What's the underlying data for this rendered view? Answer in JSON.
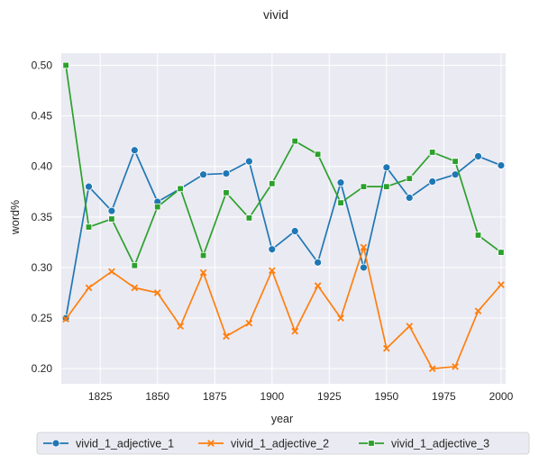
{
  "chart_data": {
    "type": "line",
    "title": "vivid",
    "xlabel": "year",
    "ylabel": "word%",
    "xlim": [
      1808,
      2002
    ],
    "ylim": [
      0.185,
      0.512
    ],
    "xticks": [
      1825,
      1850,
      1875,
      1900,
      1925,
      1950,
      1975,
      2000
    ],
    "yticks": [
      0.2,
      0.25,
      0.3,
      0.35,
      0.4,
      0.45,
      0.5
    ],
    "ytick_labels": [
      "0.20",
      "0.25",
      "0.30",
      "0.35",
      "0.40",
      "0.45",
      "0.50"
    ],
    "grid": true,
    "background": "#eaeaf2",
    "legend_position": "bottom-center",
    "x": [
      1810,
      1820,
      1830,
      1840,
      1850,
      1860,
      1870,
      1880,
      1890,
      1900,
      1910,
      1920,
      1930,
      1940,
      1950,
      1960,
      1970,
      1980,
      1990,
      2000
    ],
    "series": [
      {
        "name": "vivid_1_adjective_1",
        "color": "#1f77b4",
        "marker": "circle",
        "values": [
          0.25,
          0.38,
          0.356,
          0.416,
          0.365,
          0.378,
          0.392,
          0.393,
          0.405,
          0.318,
          0.336,
          0.305,
          0.384,
          0.3,
          0.399,
          0.369,
          0.385,
          0.392,
          0.41,
          0.401
        ]
      },
      {
        "name": "vivid_1_adjective_2",
        "color": "#ff7f0e",
        "marker": "x",
        "values": [
          0.249,
          0.28,
          0.296,
          0.28,
          0.275,
          0.242,
          0.295,
          0.232,
          0.245,
          0.297,
          0.237,
          0.282,
          0.25,
          0.32,
          0.22,
          0.242,
          0.2,
          0.202,
          0.257,
          0.283
        ]
      },
      {
        "name": "vivid_1_adjective_3",
        "color": "#2ca02c",
        "marker": "square",
        "values": [
          0.5,
          0.34,
          0.348,
          0.302,
          0.36,
          0.378,
          0.312,
          0.374,
          0.349,
          0.383,
          0.425,
          0.412,
          0.364,
          0.38,
          0.38,
          0.388,
          0.414,
          0.405,
          0.332,
          0.315
        ]
      }
    ]
  }
}
